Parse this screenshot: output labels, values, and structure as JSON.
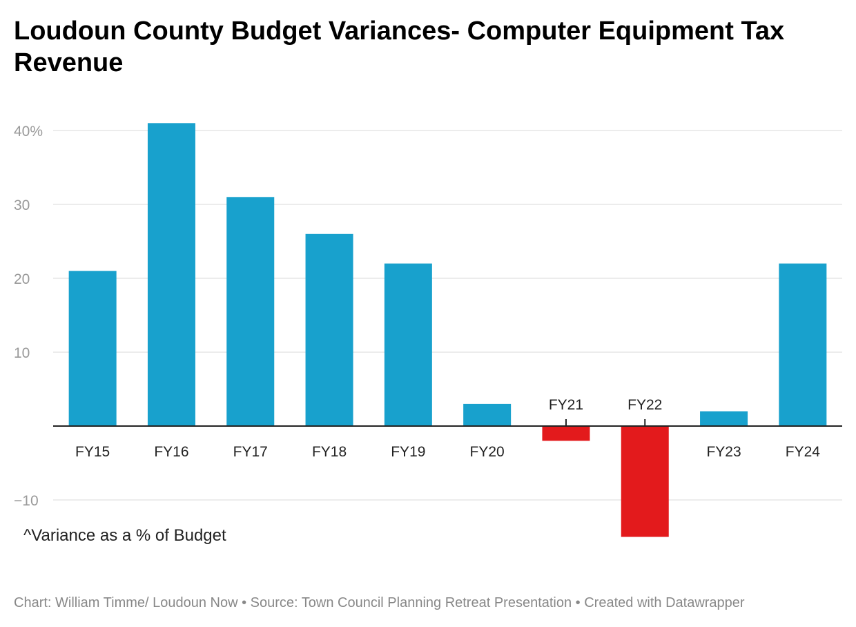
{
  "chart_data": {
    "type": "bar",
    "title": "Loudoun County Budget Variances- Computer Equipment Tax Revenue",
    "categories": [
      "FY15",
      "FY16",
      "FY17",
      "FY18",
      "FY19",
      "FY20",
      "FY21",
      "FY22",
      "FY23",
      "FY24"
    ],
    "values": [
      21,
      41,
      31,
      26,
      22,
      3,
      -2,
      -15,
      2,
      22
    ],
    "ylim": [
      -15,
      42
    ],
    "yticks": [
      -10,
      10,
      20,
      30,
      40
    ],
    "ytick_labels": [
      "−10",
      "10",
      "20",
      "30",
      "40%"
    ],
    "grid": true,
    "annotation": "^Variance as a % of Budget",
    "colors": {
      "positive": "#18a1cd",
      "negative": "#e31a1c",
      "grid": "#e5e5e5",
      "axis": "#222222",
      "tick_label": "#999999"
    }
  },
  "footer": "Chart: William Timme/ Loudoun Now • Source: Town Council Planning Retreat Presentation • Created with Datawrapper"
}
